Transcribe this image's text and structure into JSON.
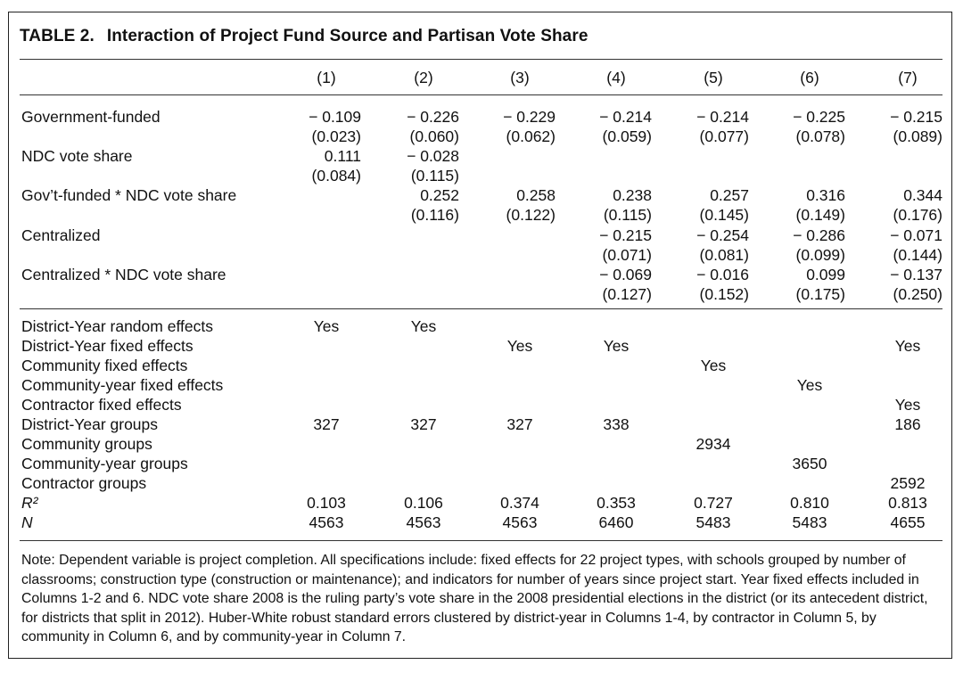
{
  "table": {
    "label": "TABLE 2.",
    "title": "Interaction of Project Fund Source and Partisan Vote Share",
    "columns": [
      "(1)",
      "(2)",
      "(3)",
      "(4)",
      "(5)",
      "(6)",
      "(7)"
    ],
    "rows": [
      {
        "label": "Government-funded",
        "coef": [
          "− 0.109",
          "− 0.226",
          "− 0.229",
          "− 0.214",
          "− 0.214",
          "− 0.225",
          "− 0.215"
        ],
        "se": [
          "(0.023)",
          "(0.060)",
          "(0.062)",
          "(0.059)",
          "(0.077)",
          "(0.078)",
          "(0.089)"
        ]
      },
      {
        "label": "NDC vote share",
        "coef": [
          "0.111",
          "− 0.028",
          "",
          "",
          "",
          "",
          ""
        ],
        "se": [
          "(0.084)",
          "(0.115)",
          "",
          "",
          "",
          "",
          ""
        ]
      },
      {
        "label": "Gov’t-funded * NDC vote share",
        "coef": [
          "",
          "0.252",
          "0.258",
          "0.238",
          "0.257",
          "0.316",
          "0.344"
        ],
        "se": [
          "",
          "(0.116)",
          "(0.122)",
          "(0.115)",
          "(0.145)",
          "(0.149)",
          "(0.176)"
        ]
      },
      {
        "label": "Centralized",
        "coef": [
          "",
          "",
          "",
          "− 0.215",
          "− 0.254",
          "− 0.286",
          "− 0.071"
        ],
        "se": [
          "",
          "",
          "",
          "(0.071)",
          "(0.081)",
          "(0.099)",
          "(0.144)"
        ]
      },
      {
        "label": "Centralized * NDC vote share",
        "coef": [
          "",
          "",
          "",
          "− 0.069",
          "− 0.016",
          "0.099",
          "− 0.137"
        ],
        "se": [
          "",
          "",
          "",
          "(0.127)",
          "(0.152)",
          "(0.175)",
          "(0.250)"
        ]
      }
    ],
    "stats": [
      {
        "label": "District-Year random effects",
        "values": [
          "Yes",
          "Yes",
          "",
          "",
          "",
          "",
          ""
        ]
      },
      {
        "label": "District-Year fixed effects",
        "values": [
          "",
          "",
          "Yes",
          "Yes",
          "",
          "",
          "Yes"
        ]
      },
      {
        "label": "Community fixed effects",
        "values": [
          "",
          "",
          "",
          "",
          "Yes",
          "",
          ""
        ]
      },
      {
        "label": "Community-year fixed effects",
        "values": [
          "",
          "",
          "",
          "",
          "",
          "Yes",
          ""
        ]
      },
      {
        "label": "Contractor fixed effects",
        "values": [
          "",
          "",
          "",
          "",
          "",
          "",
          "Yes"
        ]
      },
      {
        "label": "District-Year groups",
        "values": [
          "327",
          "327",
          "327",
          "338",
          "",
          "",
          "186"
        ]
      },
      {
        "label": "Community groups",
        "values": [
          "",
          "",
          "",
          "",
          "2934",
          "",
          ""
        ]
      },
      {
        "label": "Community-year groups",
        "values": [
          "",
          "",
          "",
          "",
          "",
          "3650",
          ""
        ]
      },
      {
        "label": "Contractor groups",
        "values": [
          "",
          "",
          "",
          "",
          "",
          "",
          "2592"
        ]
      },
      {
        "label": "R²",
        "values": [
          "0.103",
          "0.106",
          "0.374",
          "0.353",
          "0.727",
          "0.810",
          "0.813"
        ]
      },
      {
        "label": "N",
        "values": [
          "4563",
          "4563",
          "4563",
          "6460",
          "5483",
          "5483",
          "4655"
        ]
      }
    ],
    "note": "Note: Dependent variable is project completion. All specifications include: fixed effects for 22 project types, with schools grouped by number of classrooms; construction type (construction or maintenance); and indicators for number of years since project start. Year fixed effects included in Columns 1-2 and 6. NDC vote share 2008 is the ruling party’s vote share in the 2008 presidential elections in the district (or its antecedent district, for districts that split in 2012). Huber-White robust standard errors clustered by district-year in Columns 1-4, by contractor in Column 5, by community in Column 6, and by community-year in Column 7."
  }
}
